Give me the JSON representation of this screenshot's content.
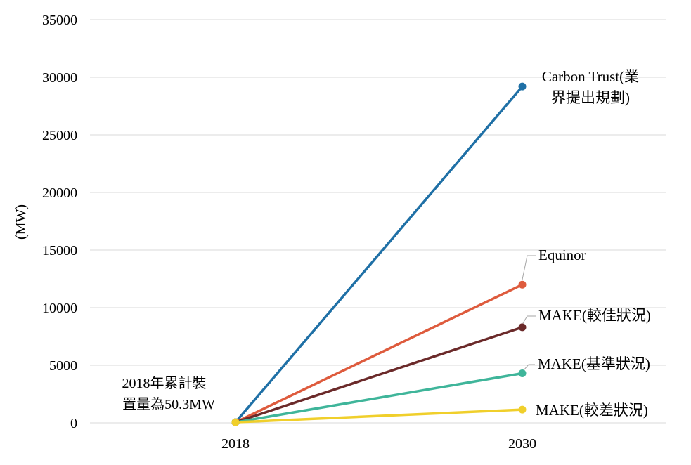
{
  "chart_data": {
    "type": "line",
    "title": "",
    "xlabel": "",
    "ylabel": "(MW)",
    "ylim": [
      0,
      35000
    ],
    "yticks": [
      "0",
      "5000",
      "10000",
      "15000",
      "20000",
      "25000",
      "30000",
      "35000"
    ],
    "categories": [
      "2018",
      "2030"
    ],
    "grid": "horizontal",
    "series": [
      {
        "name": "Carbon Trust(業界提出規劃)",
        "values": [
          50.3,
          29200
        ],
        "color": "#1f70a6",
        "label_lines": [
          "Carbon Trust(業",
          "界提出規劃)"
        ]
      },
      {
        "name": "Equinor",
        "values": [
          50.3,
          12000
        ],
        "color": "#de5b3d",
        "label_lines": [
          "Equinor"
        ]
      },
      {
        "name": "MAKE(較佳狀況)",
        "values": [
          50.3,
          8300
        ],
        "color": "#6b2a2a",
        "label_lines": [
          "MAKE(較佳狀況)"
        ]
      },
      {
        "name": "MAKE(基準狀況)",
        "values": [
          50.3,
          4300
        ],
        "color": "#3fb59a",
        "label_lines": [
          "MAKE(基準狀況)"
        ]
      },
      {
        "name": "MAKE(較差狀況)",
        "values": [
          50.3,
          1150
        ],
        "color": "#f0cf2b",
        "label_lines": [
          "MAKE(較差狀況)"
        ]
      }
    ],
    "annotation_lines": [
      "2018年累計裝",
      "置量為50.3MW"
    ]
  }
}
